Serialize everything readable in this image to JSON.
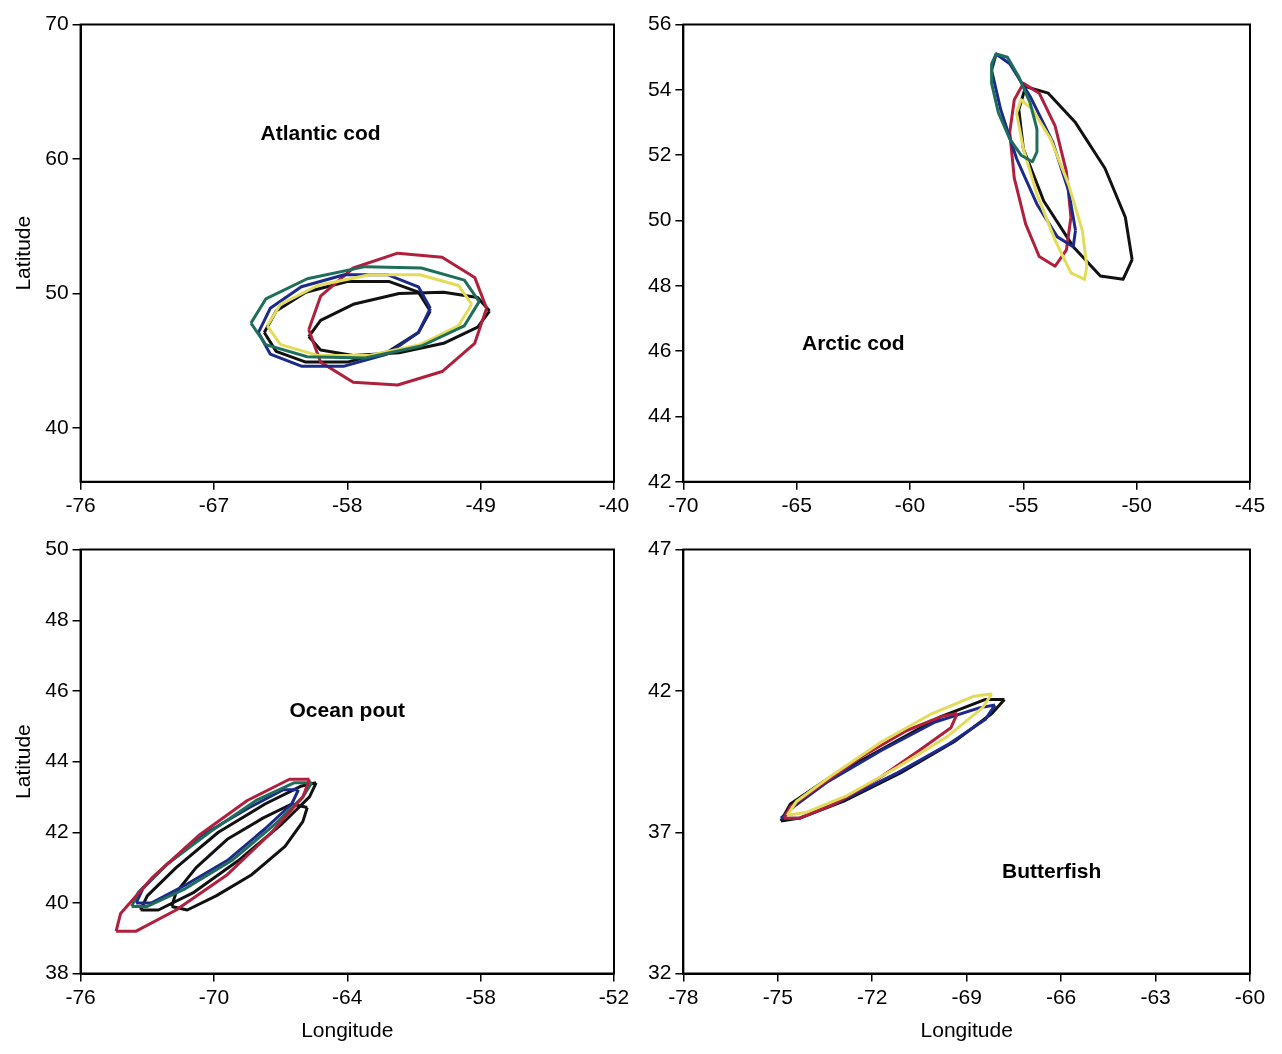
{
  "chart_data": [
    {
      "type": "line",
      "title": "Atlantic cod",
      "ylabel": "Latitude",
      "xlim": [
        -76,
        -40
      ],
      "xticks": [
        -76,
        -67,
        -58,
        -49,
        -40
      ],
      "ylim": [
        36,
        70
      ],
      "yticks": [
        40,
        50,
        60,
        70
      ],
      "grid": false,
      "series": [
        {
          "color": "#1f6e5c",
          "x": [
            -64.5,
            -63.5,
            -60.7,
            -56.8,
            -53.0,
            -50.1,
            -49.1,
            null,
            -64.5,
            -63.5,
            -60.7,
            -56.8,
            -53.0,
            -50.1,
            -49.1
          ],
          "values": [
            47.8,
            49.6,
            51.1,
            52.0,
            51.9,
            51.0,
            49.4,
            null,
            47.8,
            46.2,
            45.3,
            45.2,
            46.1,
            47.6,
            49.4
          ]
        },
        {
          "color": "#e3dc5a",
          "x": [
            -63.4,
            -62.5,
            -60.0,
            -56.5,
            -53.1,
            -50.5,
            -49.6,
            null,
            -63.4,
            -62.5,
            -60.0,
            -56.5,
            -53.1,
            -50.5,
            -49.6
          ],
          "values": [
            47.6,
            49.2,
            50.6,
            51.4,
            51.4,
            50.6,
            49.2,
            null,
            47.6,
            46.2,
            45.4,
            45.4,
            46.2,
            47.6,
            49.2
          ]
        },
        {
          "color": "#1c2a8a",
          "x": [
            -64.0,
            -63.2,
            -61.1,
            -58.2,
            -55.3,
            -53.2,
            -52.4,
            null,
            -64.0,
            -63.2,
            -61.1,
            -58.2,
            -55.3,
            -53.2,
            -52.4
          ],
          "values": [
            47.1,
            48.9,
            50.5,
            51.4,
            51.4,
            50.5,
            48.9,
            null,
            47.1,
            45.5,
            44.6,
            44.6,
            45.5,
            47.1,
            48.9
          ]
        },
        {
          "color": "#b0203c",
          "x": [
            -60.6,
            -59.8,
            -57.6,
            -54.6,
            -51.6,
            -49.4,
            -48.6,
            null,
            -60.6,
            -59.8,
            -57.6,
            -54.6,
            -51.6,
            -49.4,
            -48.6
          ],
          "values": [
            47.3,
            49.8,
            51.9,
            53.0,
            52.7,
            51.2,
            48.9,
            null,
            47.3,
            44.9,
            43.4,
            43.2,
            44.2,
            46.3,
            48.9
          ]
        },
        {
          "color": "#111111",
          "x": [
            -63.6,
            -62.8,
            -60.8,
            -58.0,
            -55.2,
            -53.2,
            -52.4,
            null,
            -63.6,
            -62.8,
            -60.8,
            -58.0,
            -55.2,
            -53.2,
            -52.4
          ],
          "values": [
            47.1,
            48.7,
            50.1,
            50.9,
            50.9,
            50.1,
            48.7,
            null,
            47.1,
            45.7,
            44.9,
            44.9,
            45.7,
            47.1,
            48.7
          ]
        },
        {
          "color": "#111111",
          "x": [
            -60.6,
            -59.8,
            -57.6,
            -54.5,
            -51.5,
            -49.2,
            -48.4,
            null,
            -60.6,
            -59.8,
            -57.6,
            -54.5,
            -51.5,
            -49.2,
            -48.4
          ],
          "values": [
            46.8,
            48.0,
            49.2,
            50.0,
            50.1,
            49.7,
            48.7,
            null,
            46.8,
            45.8,
            45.4,
            45.6,
            46.3,
            47.5,
            48.7
          ]
        }
      ]
    },
    {
      "type": "line",
      "title": "Arctic cod",
      "xlim": [
        -70,
        -45
      ],
      "xticks": [
        -70,
        -65,
        -60,
        -55,
        -50,
        -45
      ],
      "ylim": [
        42,
        56
      ],
      "yticks": [
        42,
        44,
        46,
        48,
        50,
        52,
        54,
        56
      ],
      "grid": false,
      "series": [
        {
          "color": "#1f6e5c",
          "x": [
            -56.4,
            -56.2,
            -55.7,
            -55.2,
            -54.7,
            -54.4,
            -54.4,
            null,
            -56.4,
            -56.4,
            -56.1,
            -55.6,
            -55.1,
            -54.6,
            -54.4
          ],
          "values": [
            54.8,
            55.1,
            55.0,
            54.4,
            53.6,
            52.8,
            52.1,
            null,
            54.8,
            54.2,
            53.3,
            52.5,
            52.0,
            51.8,
            52.1
          ]
        },
        {
          "color": "#e3dc5a",
          "x": [
            -55.3,
            -55.1,
            -54.6,
            -53.8,
            -53.0,
            -52.4,
            -52.2,
            null,
            -55.3,
            -55.0,
            -54.4,
            -53.6,
            -52.9,
            -52.3,
            -52.2
          ],
          "values": [
            53.3,
            53.7,
            53.4,
            52.5,
            51.1,
            49.7,
            48.6,
            null,
            53.3,
            52.2,
            50.8,
            49.4,
            48.4,
            48.2,
            48.6
          ]
        },
        {
          "color": "#1c2a8a",
          "x": [
            -56.4,
            -56.2,
            -55.6,
            -54.7,
            -53.7,
            -53.0,
            -52.7,
            null,
            -56.4,
            -56.0,
            -55.3,
            -54.4,
            -53.5,
            -52.8,
            -52.7
          ],
          "values": [
            54.6,
            55.1,
            54.8,
            53.8,
            52.4,
            50.9,
            49.7,
            null,
            54.6,
            53.4,
            51.9,
            50.5,
            49.5,
            49.2,
            49.7
          ]
        },
        {
          "color": "#b0203c",
          "x": [
            -55.6,
            -55.4,
            -55.0,
            -54.3,
            -53.6,
            -53.1,
            -52.9,
            null,
            -55.6,
            -55.4,
            -54.9,
            -54.3,
            -53.6,
            -53.1,
            -52.9
          ],
          "values": [
            52.7,
            53.7,
            54.2,
            53.9,
            52.9,
            51.5,
            50.1,
            null,
            52.7,
            51.3,
            49.9,
            48.9,
            48.6,
            49.1,
            50.1
          ]
        },
        {
          "color": "#111111",
          "x": [
            -55.2,
            -54.9,
            -53.9,
            -52.7,
            -51.4,
            -50.5,
            -50.2,
            null,
            -55.2,
            -55.0,
            -54.1,
            -52.8,
            -51.6,
            -50.6,
            -50.2
          ],
          "values": [
            53.4,
            54.1,
            53.9,
            53.0,
            51.6,
            50.1,
            48.8,
            null,
            53.4,
            52.2,
            50.6,
            49.2,
            48.3,
            48.2,
            48.8
          ]
        }
      ]
    },
    {
      "type": "line",
      "title": "Ocean pout",
      "xlabel": "Longitude",
      "ylabel": "Latitude",
      "xlim": [
        -76,
        -52
      ],
      "xticks": [
        -76,
        -70,
        -64,
        -58,
        -52
      ],
      "ylim": [
        38,
        50
      ],
      "yticks": [
        38,
        40,
        42,
        44,
        46,
        48,
        50
      ],
      "grid": false,
      "series": [
        {
          "color": "#b0203c",
          "x": [
            -74.4,
            -73.5,
            -71.7,
            -69.4,
            -67.4,
            -66.0,
            -65.7,
            null,
            -74.4,
            -74.2,
            -72.8,
            -70.7,
            -68.5,
            -66.6,
            -65.7
          ],
          "values": [
            39.2,
            39.2,
            39.8,
            40.8,
            42.0,
            43.0,
            43.5,
            null,
            39.2,
            39.7,
            40.7,
            41.9,
            42.9,
            43.5,
            43.5
          ]
        },
        {
          "color": "#1f6e5c",
          "x": [
            -73.7,
            -73.0,
            -71.3,
            -69.2,
            -67.3,
            -66.0,
            -65.6,
            null,
            -73.7,
            -73.4,
            -72.1,
            -70.2,
            -68.1,
            -66.4,
            -65.6
          ],
          "values": [
            39.9,
            39.9,
            40.4,
            41.2,
            42.2,
            43.0,
            43.4,
            null,
            39.9,
            40.3,
            41.1,
            42.0,
            42.9,
            43.4,
            43.4
          ]
        },
        {
          "color": "#1c2a8a",
          "x": [
            -73.5,
            -72.8,
            -71.3,
            -69.4,
            -67.7,
            -66.5,
            -66.2,
            null,
            -73.5,
            -73.2,
            -72.1,
            -70.3,
            -68.4,
            -66.9,
            -66.2
          ],
          "values": [
            40.0,
            40.0,
            40.5,
            41.2,
            42.1,
            42.8,
            43.2,
            null,
            40.0,
            40.4,
            41.1,
            42.0,
            42.7,
            43.2,
            43.2
          ]
        },
        {
          "color": "#111111",
          "x": [
            -73.3,
            -72.5,
            -70.9,
            -68.9,
            -67.0,
            -65.7,
            -65.4,
            null,
            -73.3,
            -73.0,
            -71.7,
            -69.8,
            -67.7,
            -66.1,
            -65.4
          ],
          "values": [
            39.8,
            39.8,
            40.3,
            41.2,
            42.2,
            43.0,
            43.4,
            null,
            39.8,
            40.2,
            41.0,
            42.0,
            42.8,
            43.3,
            43.4
          ]
        },
        {
          "color": "#111111",
          "x": [
            -71.9,
            -71.2,
            -69.9,
            -68.3,
            -66.8,
            -66.0,
            -65.8,
            null,
            -71.9,
            -71.7,
            -70.8,
            -69.4,
            -67.8,
            -66.5,
            -65.8
          ],
          "values": [
            39.9,
            39.8,
            40.2,
            40.8,
            41.6,
            42.3,
            42.7,
            null,
            39.9,
            40.3,
            41.0,
            41.8,
            42.4,
            42.8,
            42.7
          ]
        }
      ]
    },
    {
      "type": "line",
      "title": "Butterfish",
      "xlabel": "Longitude",
      "xlim": [
        -78,
        -60
      ],
      "xticks": [
        -78,
        -75,
        -72,
        -69,
        -66,
        -63,
        -60
      ],
      "ylim": [
        32,
        47
      ],
      "yticks": [
        32,
        37,
        42,
        47
      ],
      "grid": false,
      "series": [
        {
          "color": "#e3dc5a",
          "x": [
            -74.7,
            -74.1,
            -72.8,
            -71.2,
            -69.6,
            -68.5,
            -68.2,
            null,
            -74.7,
            -74.4,
            -73.3,
            -71.7,
            -70.1,
            -68.8,
            -68.2
          ],
          "values": [
            37.6,
            37.7,
            38.3,
            39.3,
            40.4,
            41.4,
            41.9,
            null,
            37.6,
            38.1,
            39.0,
            40.2,
            41.2,
            41.8,
            41.9
          ]
        },
        {
          "color": "#b0203c",
          "x": [
            -74.8,
            -74.3,
            -73.2,
            -71.8,
            -70.5,
            -69.5,
            -69.3,
            null,
            -74.8,
            -74.6,
            -73.6,
            -72.3,
            -70.9,
            -69.8,
            -69.3
          ],
          "values": [
            37.5,
            37.5,
            38.0,
            38.9,
            39.9,
            40.7,
            41.2,
            null,
            37.5,
            37.9,
            38.7,
            39.7,
            40.6,
            41.1,
            41.2
          ]
        },
        {
          "color": "#1c2a8a",
          "x": [
            -74.9,
            -74.3,
            -73.0,
            -71.2,
            -69.6,
            -68.4,
            -68.1,
            null,
            -74.9,
            -74.5,
            -73.4,
            -71.7,
            -70.0,
            -68.6,
            -68.1
          ],
          "values": [
            37.5,
            37.5,
            38.1,
            39.1,
            40.1,
            41.0,
            41.5,
            null,
            37.5,
            37.9,
            38.8,
            39.9,
            40.9,
            41.4,
            41.5
          ]
        },
        {
          "color": "#111111",
          "x": [
            -74.9,
            -74.3,
            -72.9,
            -71.1,
            -69.4,
            -68.2,
            -67.8,
            null,
            -74.9,
            -74.6,
            -73.4,
            -71.6,
            -69.8,
            -68.4,
            -67.8
          ],
          "values": [
            37.4,
            37.5,
            38.1,
            39.1,
            40.2,
            41.2,
            41.7,
            null,
            37.4,
            38.0,
            38.9,
            40.0,
            41.1,
            41.7,
            41.7
          ]
        }
      ]
    }
  ]
}
